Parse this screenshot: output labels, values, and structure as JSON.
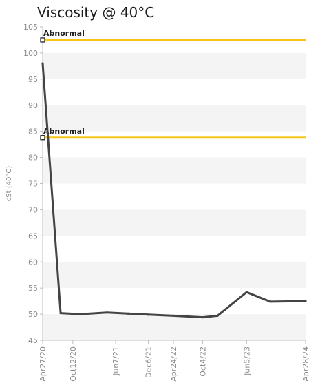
{
  "chart_data": {
    "type": "line",
    "title": "Viscosity @ 40°C",
    "ylabel": "cSt (40°C)",
    "xlabel": "",
    "ylim": [
      45,
      105
    ],
    "yticks": [
      45,
      50,
      55,
      60,
      65,
      70,
      75,
      80,
      85,
      90,
      95,
      100,
      105
    ],
    "xlim": [
      "2020-04-27",
      "2024-04-28"
    ],
    "xticks": [
      {
        "date": "2020-04-27",
        "label": "Apr27/20"
      },
      {
        "date": "2020-10-12",
        "label": "Oct12/20"
      },
      {
        "date": "2021-06-07",
        "label": "Jun7/21"
      },
      {
        "date": "2021-12-06",
        "label": "Dec6/21"
      },
      {
        "date": "2022-04-24",
        "label": "Apr24/22"
      },
      {
        "date": "2022-10-04",
        "label": "Oct4/22"
      },
      {
        "date": "2023-06-05",
        "label": "Jun5/23"
      },
      {
        "date": "2024-04-28",
        "label": "Apr28/24"
      }
    ],
    "grid": "horizontal bands",
    "series": [
      {
        "color": "#444444",
        "points": [
          {
            "x": "2020-04-27",
            "y": 98.0
          },
          {
            "x": "2020-08-05",
            "y": 50.2
          },
          {
            "x": "2020-11-20",
            "y": 50.0
          },
          {
            "x": "2021-04-20",
            "y": 50.3
          },
          {
            "x": "2021-08-15",
            "y": 50.1
          },
          {
            "x": "2021-12-06",
            "y": 49.9
          },
          {
            "x": "2022-04-24",
            "y": 49.7
          },
          {
            "x": "2022-10-04",
            "y": 49.4
          },
          {
            "x": "2022-12-25",
            "y": 49.7
          },
          {
            "x": "2023-06-05",
            "y": 54.2
          },
          {
            "x": "2023-10-15",
            "y": 52.4
          },
          {
            "x": "2024-04-28",
            "y": 52.5
          }
        ]
      }
    ],
    "reference_lines": [
      {
        "label": "Abnormal",
        "y": 102.5,
        "color": "#f5c518"
      },
      {
        "label": "Abnormal",
        "y": 83.8,
        "color": "#f5c518"
      }
    ]
  }
}
